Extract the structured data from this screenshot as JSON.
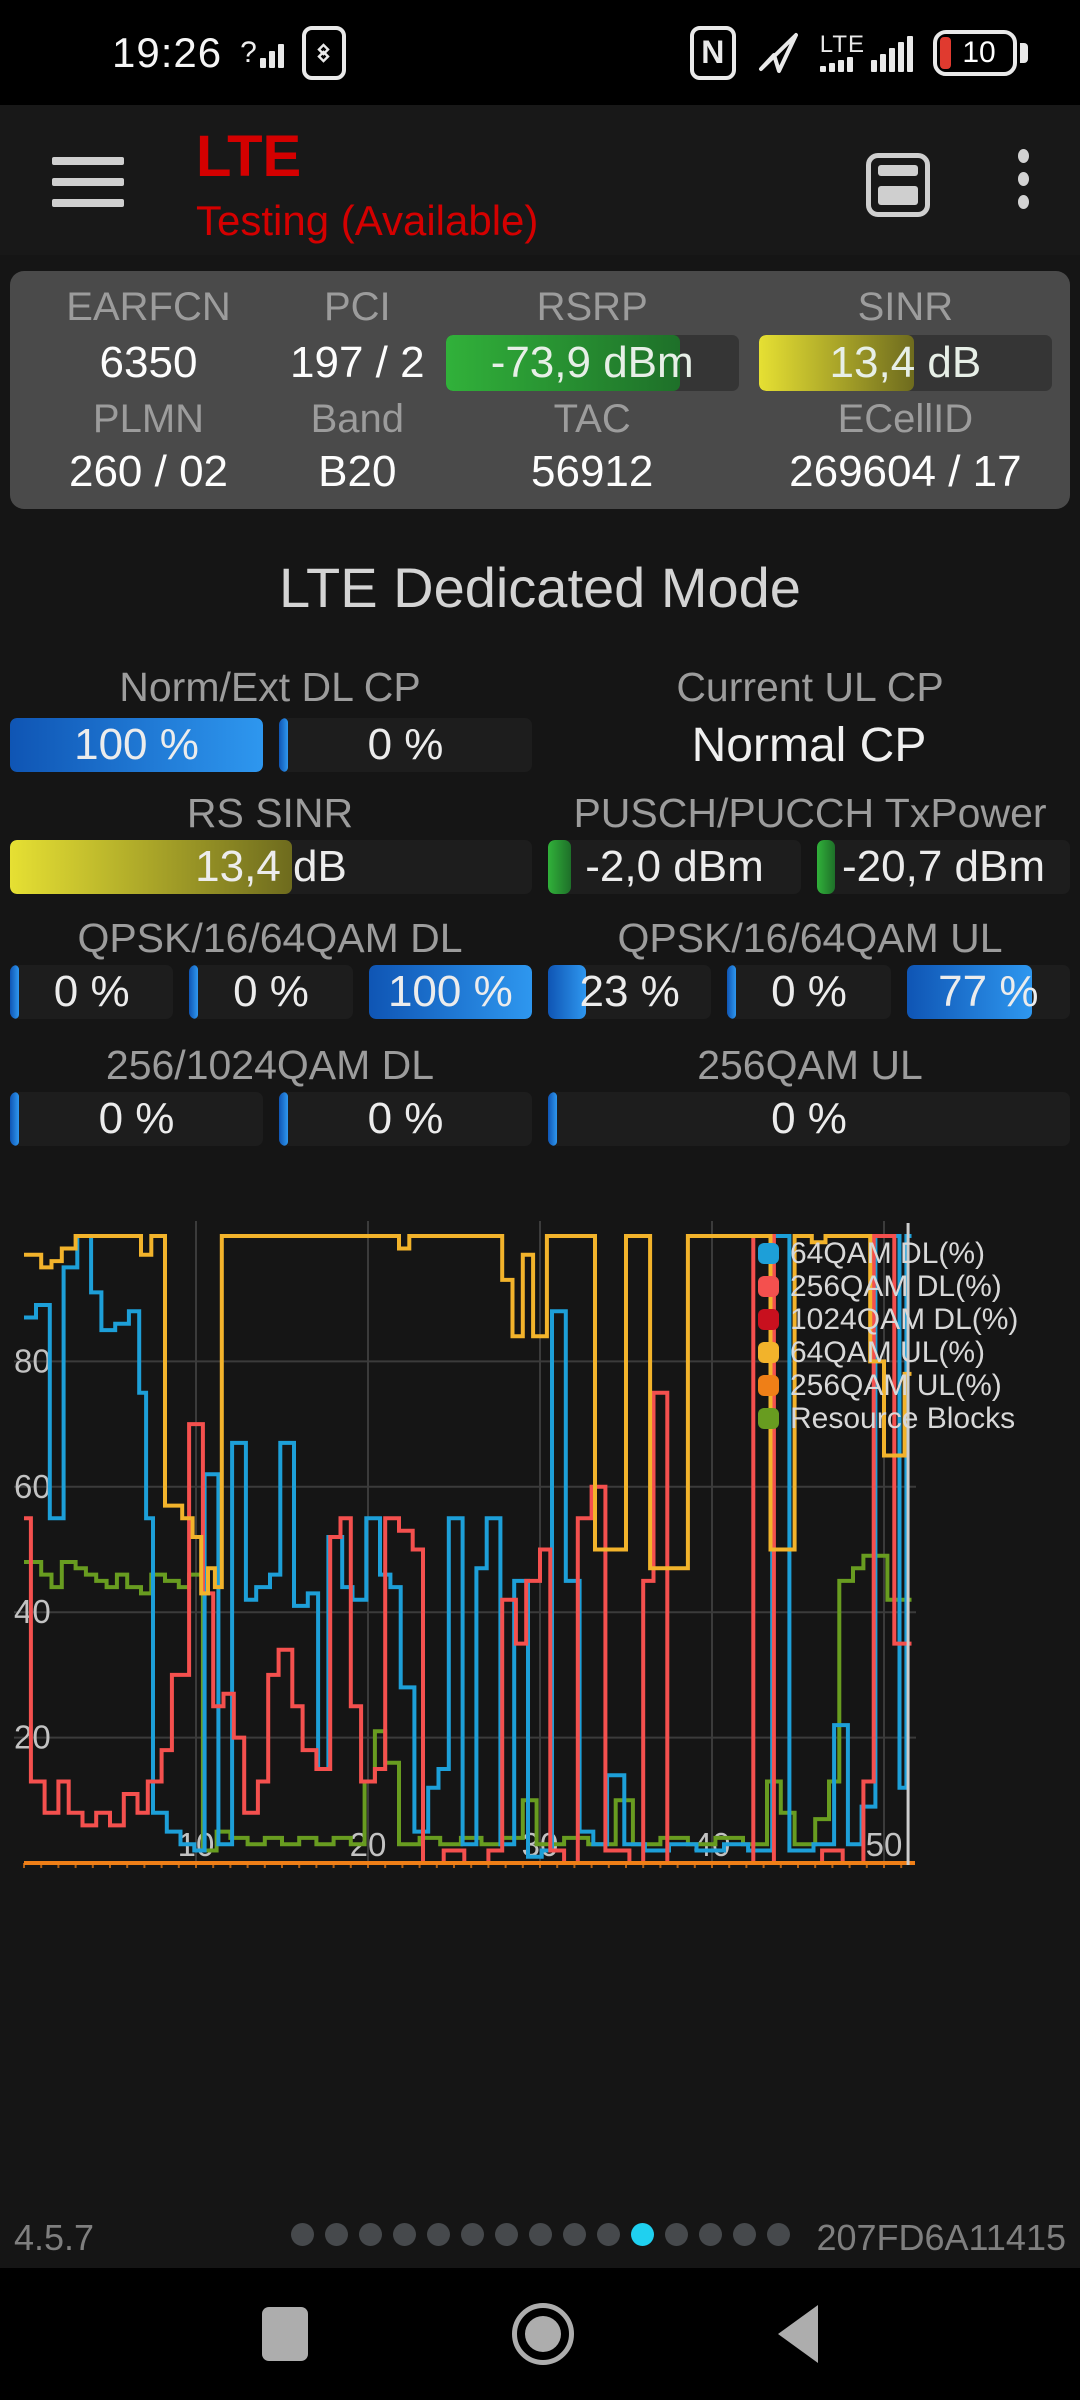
{
  "status_bar": {
    "time": "19:26",
    "signal_question": "?",
    "network_label": "LTE",
    "battery_percent": "10"
  },
  "app_bar": {
    "title": "LTE",
    "subtitle": "Testing (Available)",
    "accent_color": "#d40000"
  },
  "info_card": {
    "row1": [
      {
        "label": "EARFCN",
        "value": "6350"
      },
      {
        "label": "PCI",
        "value": "197 / 2"
      },
      {
        "label": "RSRP",
        "value": "-73,9 dBm",
        "fill_pct": 80
      },
      {
        "label": "SINR",
        "value": "13,4 dB",
        "fill_pct": 53
      }
    ],
    "row2": [
      {
        "label": "PLMN",
        "value": "260 / 02"
      },
      {
        "label": "Band",
        "value": "B20"
      },
      {
        "label": "TAC",
        "value": "56912"
      },
      {
        "label": "ECellID",
        "value": "269604 / 17"
      }
    ]
  },
  "dedicated": {
    "title": "LTE Dedicated Mode",
    "norm_ext_dl_cp": {
      "label": "Norm/Ext DL CP",
      "bars": [
        {
          "value": "100 %",
          "fill_pct": 100
        },
        {
          "value": "0 %",
          "fill_pct": 0
        }
      ]
    },
    "current_ul_cp": {
      "label": "Current UL CP",
      "value": "Normal CP"
    },
    "rs_sinr": {
      "label": "RS SINR",
      "bars": [
        {
          "value": "13,4 dB",
          "fill_pct": 54,
          "color": "yellow"
        }
      ]
    },
    "txpower": {
      "label": "PUSCH/PUCCH TxPower",
      "bars": [
        {
          "value": "-2,0 dBm",
          "fill_pct": 9,
          "color": "green"
        },
        {
          "value": "-20,7 dBm",
          "fill_pct": 7,
          "color": "green"
        }
      ]
    },
    "qam_dl": {
      "label": "QPSK/16/64QAM DL",
      "bars": [
        {
          "value": "0 %",
          "fill_pct": 0
        },
        {
          "value": "0 %",
          "fill_pct": 0
        },
        {
          "value": "100 %",
          "fill_pct": 100
        }
      ]
    },
    "qam_ul": {
      "label": "QPSK/16/64QAM UL",
      "bars": [
        {
          "value": "23 %",
          "fill_pct": 23
        },
        {
          "value": "0 %",
          "fill_pct": 0
        },
        {
          "value": "77 %",
          "fill_pct": 77
        }
      ]
    },
    "qam256_dl": {
      "label": "256/1024QAM DL",
      "bars": [
        {
          "value": "0 %",
          "fill_pct": 0
        },
        {
          "value": "0 %",
          "fill_pct": 0
        }
      ]
    },
    "qam256_ul": {
      "label": "256QAM UL",
      "bars": [
        {
          "value": "0 %",
          "fill_pct": 0
        }
      ]
    }
  },
  "chart_data": {
    "type": "line",
    "step": true,
    "title": "",
    "xlabel": "",
    "ylabel": "",
    "xlim": [
      0,
      52.5
    ],
    "ylim": [
      0,
      103
    ],
    "x_ticks": [
      10,
      20,
      30,
      40,
      50
    ],
    "y_ticks": [
      20,
      40,
      60,
      80
    ],
    "grid": true,
    "legend_position": "top-right",
    "cursor_x": 51.4,
    "grid_color": "#3b3b3b",
    "cursor_color": "#cdcdcd",
    "baseline_color": "#ef7f17",
    "series": [
      {
        "name": "64QAM DL(%)",
        "color": "#1d9fd8",
        "points": [
          [
            0,
            87
          ],
          [
            0.7,
            89
          ],
          [
            1.5,
            55
          ],
          [
            2.3,
            95
          ],
          [
            3.1,
            100
          ],
          [
            3.9,
            91
          ],
          [
            4.5,
            85
          ],
          [
            5.3,
            86
          ],
          [
            6.1,
            88
          ],
          [
            6.7,
            75
          ],
          [
            7.1,
            55
          ],
          [
            7.5,
            8
          ],
          [
            8.3,
            5
          ],
          [
            9.1,
            3
          ],
          [
            9.9,
            2
          ],
          [
            10.5,
            62
          ],
          [
            11.3,
            3
          ],
          [
            12.1,
            67
          ],
          [
            12.9,
            42
          ],
          [
            13.5,
            44
          ],
          [
            14.3,
            46
          ],
          [
            14.9,
            67
          ],
          [
            15.7,
            41
          ],
          [
            16.5,
            43
          ],
          [
            17.1,
            15
          ],
          [
            17.7,
            52
          ],
          [
            18.5,
            44
          ],
          [
            19.1,
            42
          ],
          [
            19.9,
            55
          ],
          [
            20.7,
            46
          ],
          [
            21.3,
            44
          ],
          [
            21.9,
            28
          ],
          [
            22.7,
            5
          ],
          [
            23.5,
            12
          ],
          [
            24.1,
            15
          ],
          [
            24.7,
            55
          ],
          [
            25.5,
            3
          ],
          [
            26.3,
            47
          ],
          [
            26.9,
            55
          ],
          [
            27.7,
            3
          ],
          [
            28.5,
            45
          ],
          [
            29.3,
            1
          ],
          [
            30.1,
            2
          ],
          [
            30.7,
            88
          ],
          [
            31.5,
            45
          ],
          [
            32.3,
            5
          ],
          [
            33.1,
            3
          ],
          [
            33.9,
            14
          ],
          [
            34.9,
            3
          ],
          [
            36.1,
            2
          ],
          [
            37.5,
            3
          ],
          [
            39.1,
            2
          ],
          [
            40.7,
            3
          ],
          [
            42.1,
            2
          ],
          [
            43.5,
            100
          ],
          [
            44.5,
            2
          ],
          [
            45.9,
            3
          ],
          [
            47.1,
            22
          ],
          [
            47.9,
            3
          ],
          [
            48.7,
            9
          ],
          [
            49.5,
            100
          ],
          [
            50.9,
            12
          ],
          [
            51.3,
            100
          ],
          [
            51.6,
            100
          ]
        ]
      },
      {
        "name": "256QAM DL(%)",
        "color": "#f4504e",
        "points": [
          [
            0,
            55
          ],
          [
            0.4,
            13
          ],
          [
            1.2,
            8
          ],
          [
            2,
            13
          ],
          [
            2.6,
            8
          ],
          [
            3.4,
            6
          ],
          [
            4.2,
            8
          ],
          [
            5,
            6
          ],
          [
            5.8,
            11
          ],
          [
            6.6,
            8
          ],
          [
            7.2,
            13
          ],
          [
            8,
            18
          ],
          [
            8.6,
            30
          ],
          [
            9.6,
            70
          ],
          [
            10.4,
            43
          ],
          [
            11,
            25
          ],
          [
            11.6,
            27
          ],
          [
            12.2,
            20
          ],
          [
            12.8,
            8
          ],
          [
            13.6,
            13
          ],
          [
            14.2,
            30
          ],
          [
            14.8,
            34
          ],
          [
            15.6,
            25
          ],
          [
            16.2,
            18
          ],
          [
            17,
            15
          ],
          [
            17.8,
            52
          ],
          [
            18.4,
            55
          ],
          [
            19,
            25
          ],
          [
            19.6,
            13
          ],
          [
            20.4,
            15
          ],
          [
            21,
            55
          ],
          [
            21.8,
            53
          ],
          [
            22.6,
            50
          ],
          [
            23.2,
            0
          ],
          [
            24.4,
            2
          ],
          [
            25.6,
            0
          ],
          [
            27,
            2
          ],
          [
            27.8,
            42
          ],
          [
            28.6,
            35
          ],
          [
            29.2,
            45
          ],
          [
            30,
            50
          ],
          [
            30.6,
            2
          ],
          [
            31.4,
            0
          ],
          [
            32.2,
            55
          ],
          [
            33,
            60
          ],
          [
            33.8,
            2
          ],
          [
            35.2,
            0
          ],
          [
            36,
            45
          ],
          [
            36.6,
            75
          ],
          [
            37.4,
            0
          ],
          [
            39,
            0
          ],
          [
            40.6,
            0
          ],
          [
            42.4,
            100
          ],
          [
            43.6,
            0
          ],
          [
            45,
            0
          ],
          [
            46.4,
            2
          ],
          [
            47.6,
            0
          ],
          [
            48.8,
            13
          ],
          [
            49.4,
            100
          ],
          [
            50.6,
            35
          ],
          [
            51.6,
            35
          ]
        ]
      },
      {
        "name": "1024QAM DL(%)",
        "color": "#c8101e",
        "points": [
          [
            0,
            0
          ],
          [
            51.8,
            0
          ]
        ]
      },
      {
        "name": "64QAM UL(%)",
        "color": "#f2b32b",
        "points": [
          [
            0,
            97
          ],
          [
            1,
            95
          ],
          [
            1.6,
            96
          ],
          [
            2.2,
            98
          ],
          [
            3,
            100
          ],
          [
            6.8,
            97
          ],
          [
            7.4,
            100
          ],
          [
            8.2,
            57
          ],
          [
            9.2,
            55
          ],
          [
            9.8,
            52
          ],
          [
            10.3,
            43
          ],
          [
            10.7,
            47
          ],
          [
            11.1,
            44
          ],
          [
            11.5,
            100
          ],
          [
            21.8,
            98
          ],
          [
            22.4,
            100
          ],
          [
            27.8,
            93
          ],
          [
            28.4,
            84
          ],
          [
            29,
            97
          ],
          [
            29.6,
            84
          ],
          [
            30.4,
            100
          ],
          [
            33.2,
            50
          ],
          [
            35,
            100
          ],
          [
            36.4,
            47
          ],
          [
            38.6,
            100
          ],
          [
            43.4,
            50
          ],
          [
            44.8,
            100
          ],
          [
            45.8,
            99
          ],
          [
            46.6,
            100
          ],
          [
            49.2,
            80
          ],
          [
            50,
            65
          ],
          [
            51.2,
            78
          ],
          [
            51.6,
            78
          ]
        ]
      },
      {
        "name": "256QAM UL(%)",
        "color": "#ef7f17",
        "points": [
          [
            0,
            0
          ],
          [
            51.8,
            0
          ]
        ]
      },
      {
        "name": "Resource Blocks",
        "color": "#689c20",
        "points": [
          [
            0,
            48
          ],
          [
            1,
            46
          ],
          [
            1.6,
            44
          ],
          [
            2.2,
            48
          ],
          [
            3,
            47
          ],
          [
            3.6,
            46
          ],
          [
            4.2,
            45
          ],
          [
            4.8,
            44
          ],
          [
            5.4,
            46
          ],
          [
            6,
            44
          ],
          [
            6.8,
            43
          ],
          [
            7.4,
            46
          ],
          [
            8.2,
            45
          ],
          [
            9,
            44
          ],
          [
            9.6,
            46
          ],
          [
            10.4,
            2
          ],
          [
            11.2,
            5
          ],
          [
            12,
            4
          ],
          [
            13,
            3
          ],
          [
            14,
            4
          ],
          [
            15,
            3
          ],
          [
            16,
            4
          ],
          [
            17,
            3
          ],
          [
            18,
            4
          ],
          [
            19,
            3
          ],
          [
            19.8,
            13
          ],
          [
            20.4,
            21
          ],
          [
            21,
            16
          ],
          [
            21.8,
            3
          ],
          [
            23,
            4
          ],
          [
            24.2,
            3
          ],
          [
            25.4,
            4
          ],
          [
            26.6,
            3
          ],
          [
            27.8,
            4
          ],
          [
            29,
            10
          ],
          [
            29.8,
            3
          ],
          [
            31.4,
            4
          ],
          [
            32.8,
            3
          ],
          [
            34.4,
            10
          ],
          [
            35.4,
            3
          ],
          [
            37,
            4
          ],
          [
            38.6,
            3
          ],
          [
            40.2,
            4
          ],
          [
            41.8,
            3
          ],
          [
            43.2,
            13
          ],
          [
            44,
            8
          ],
          [
            44.8,
            3
          ],
          [
            46,
            7
          ],
          [
            46.8,
            13
          ],
          [
            47.4,
            45
          ],
          [
            48.2,
            47
          ],
          [
            48.8,
            49
          ],
          [
            50.2,
            42
          ],
          [
            51.6,
            42
          ]
        ]
      }
    ]
  },
  "footer": {
    "version": "4.5.7",
    "device_id": "207FD6A11415",
    "dots": {
      "count": 15,
      "active_index": 11,
      "active_color": "#1fd0f0",
      "inactive_color": "#46494c"
    }
  }
}
